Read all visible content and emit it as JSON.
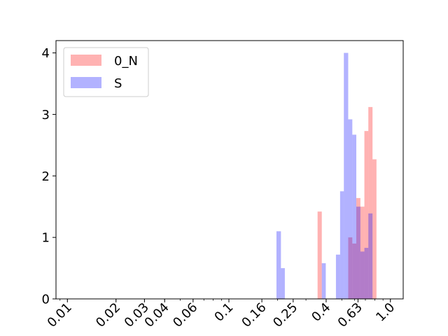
{
  "chart_data": {
    "type": "histogram",
    "x_scale": "log",
    "x_ticks": [
      "0.01",
      "0.02",
      "0.03",
      "0.04",
      "0.06",
      "0.1",
      "0.16",
      "0.25",
      "0.4",
      "0.63",
      "1.0"
    ],
    "x_tick_values": [
      0.01,
      0.02,
      0.03,
      0.04,
      0.06,
      0.1,
      0.16,
      0.25,
      0.4,
      0.63,
      1.0
    ],
    "xlim": [
      0.0085,
      1.2
    ],
    "y_ticks": [
      "0",
      "1",
      "2",
      "3",
      "4"
    ],
    "y_tick_values": [
      0,
      1,
      2,
      3,
      4
    ],
    "ylim": [
      0,
      4.2
    ],
    "legend_position": "upper-left",
    "series": [
      {
        "name": "0_N",
        "color": "#ff0000",
        "alpha": 0.3,
        "bins": [
          {
            "x0": 0.354,
            "x1": 0.376,
            "value": 1.42
          },
          {
            "x0": 0.548,
            "x1": 0.581,
            "value": 1.0
          },
          {
            "x0": 0.581,
            "x1": 0.615,
            "value": 0.9
          },
          {
            "x0": 0.615,
            "x1": 0.652,
            "value": 1.64
          },
          {
            "x0": 0.652,
            "x1": 0.69,
            "value": 1.5
          },
          {
            "x0": 0.69,
            "x1": 0.73,
            "value": 2.73
          },
          {
            "x0": 0.73,
            "x1": 0.775,
            "value": 3.12
          },
          {
            "x0": 0.775,
            "x1": 0.82,
            "value": 2.27
          }
        ]
      },
      {
        "name": "S",
        "color": "#0000ff",
        "alpha": 0.3,
        "bins": [
          {
            "x0": 0.197,
            "x1": 0.21,
            "value": 1.1
          },
          {
            "x0": 0.21,
            "x1": 0.222,
            "value": 0.5
          },
          {
            "x0": 0.376,
            "x1": 0.398,
            "value": 0.58
          },
          {
            "x0": 0.46,
            "x1": 0.488,
            "value": 0.72
          },
          {
            "x0": 0.488,
            "x1": 0.515,
            "value": 1.75
          },
          {
            "x0": 0.515,
            "x1": 0.548,
            "value": 4.0
          },
          {
            "x0": 0.548,
            "x1": 0.581,
            "value": 2.92
          },
          {
            "x0": 0.581,
            "x1": 0.615,
            "value": 2.67
          },
          {
            "x0": 0.615,
            "x1": 0.652,
            "value": 1.5
          },
          {
            "x0": 0.652,
            "x1": 0.69,
            "value": 0.77
          },
          {
            "x0": 0.69,
            "x1": 0.73,
            "value": 0.83
          },
          {
            "x0": 0.73,
            "x1": 0.775,
            "value": 1.39
          }
        ]
      }
    ]
  }
}
